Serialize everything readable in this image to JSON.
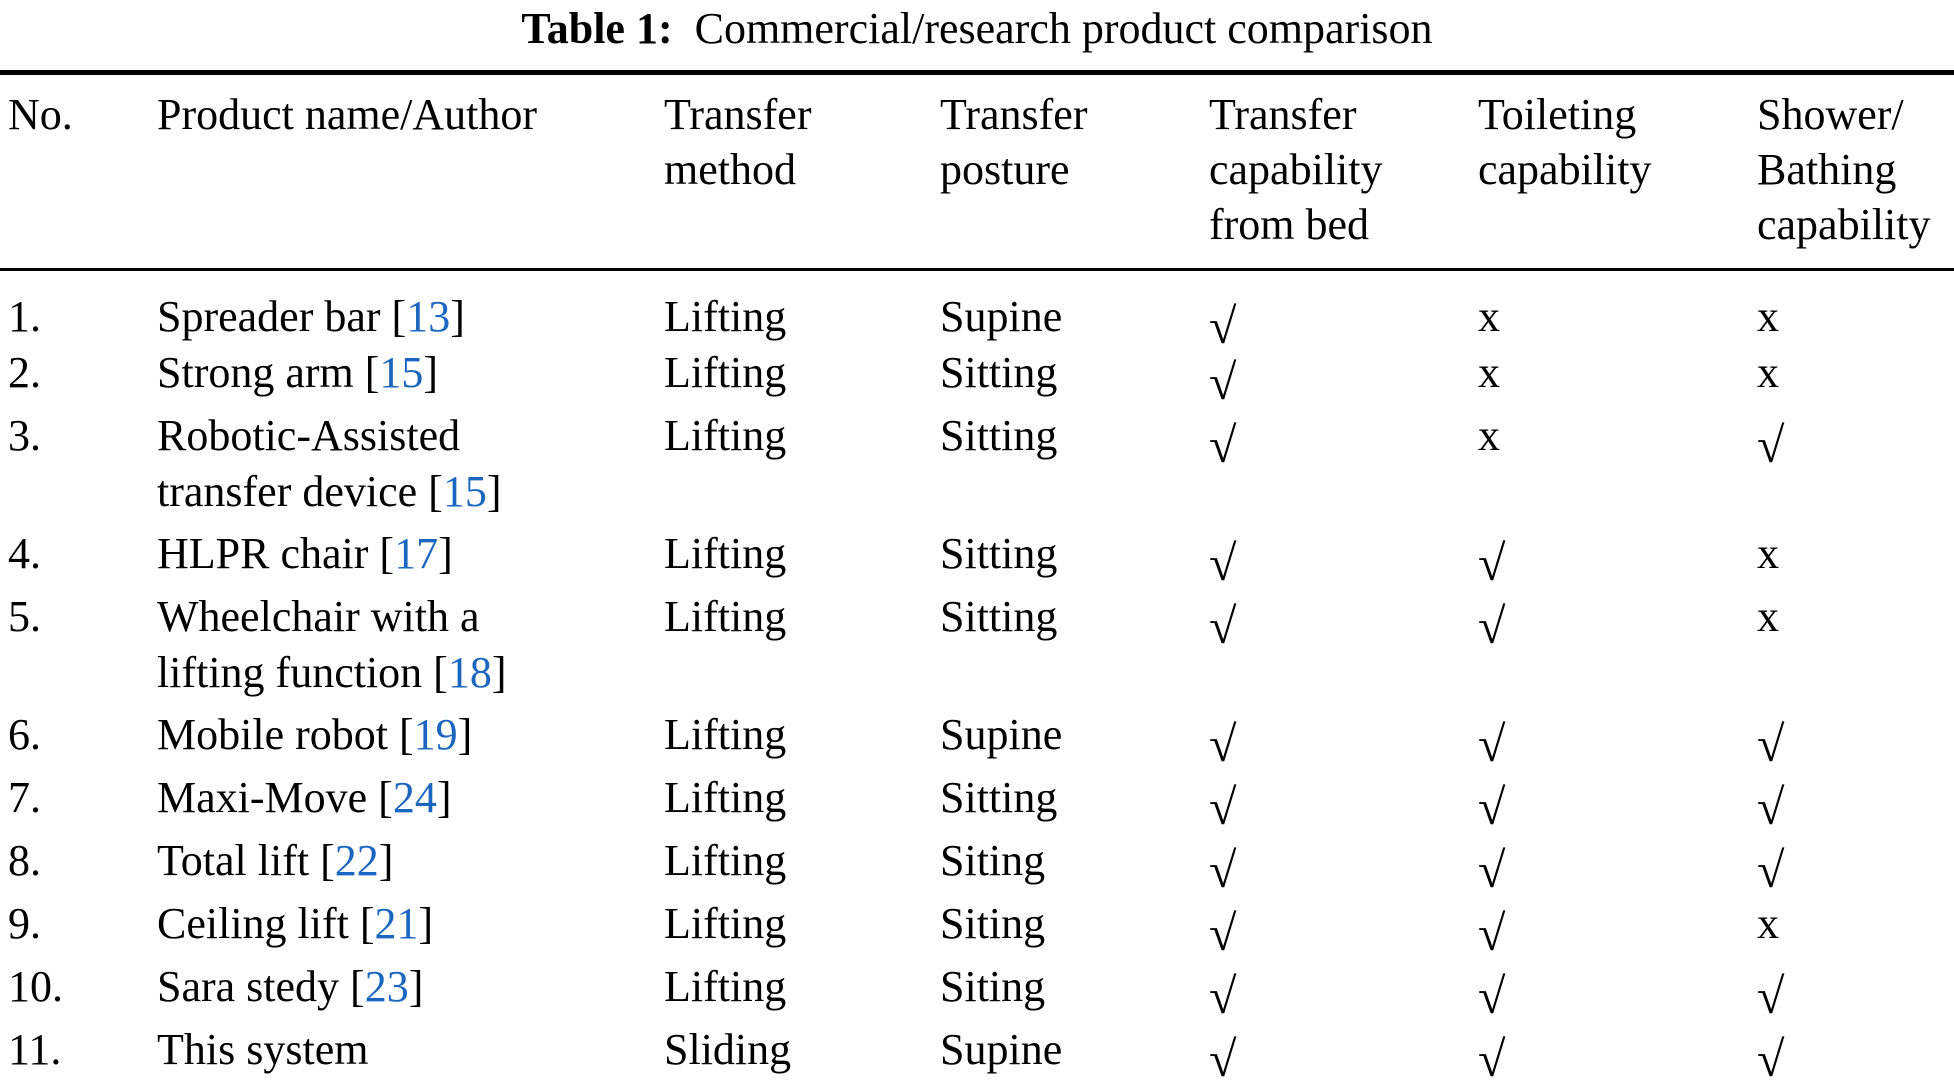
{
  "title": {
    "label": "Table 1:",
    "text": "Commercial/research product comparison"
  },
  "accent_color": "#1b67bf",
  "symbols": {
    "check": "√",
    "cross": "x"
  },
  "table": {
    "columns": [
      {
        "key": "no",
        "lines": [
          "No."
        ]
      },
      {
        "key": "product",
        "lines": [
          "Product name/Author"
        ]
      },
      {
        "key": "method",
        "lines": [
          "Transfer",
          "method"
        ]
      },
      {
        "key": "posture",
        "lines": [
          "Transfer",
          "posture"
        ]
      },
      {
        "key": "bed",
        "lines": [
          "Transfer",
          "capability",
          "from bed"
        ]
      },
      {
        "key": "toilet",
        "lines": [
          "Toileting",
          "capability"
        ]
      },
      {
        "key": "shower",
        "lines": [
          "Shower/",
          "Bathing",
          "capability"
        ]
      }
    ],
    "rows": [
      {
        "no": "1.",
        "name": [
          {
            "text": "Spreader bar",
            "ref": "13"
          }
        ],
        "method": "Lifting",
        "posture": "Supine",
        "bed": "check",
        "toilet": "cross",
        "shower": "cross"
      },
      {
        "no": "2.",
        "name": [
          {
            "text": "Strong arm",
            "ref": "15"
          }
        ],
        "method": "Lifting",
        "posture": "Sitting",
        "bed": "check",
        "toilet": "cross",
        "shower": "cross"
      },
      {
        "no": "3.",
        "name": [
          {
            "text": "Robotic-Assisted"
          },
          {
            "text": "transfer device",
            "ref": "15"
          }
        ],
        "method": "Lifting",
        "posture": "Sitting",
        "bed": "check",
        "toilet": "cross",
        "shower": "check"
      },
      {
        "no": "4.",
        "name": [
          {
            "text": "HLPR chair",
            "ref": "17"
          }
        ],
        "method": "Lifting",
        "posture": "Sitting",
        "bed": "check",
        "toilet": "check",
        "shower": "cross"
      },
      {
        "no": "5.",
        "name": [
          {
            "text": "Wheelchair with a"
          },
          {
            "text": "lifting function",
            "ref": "18"
          }
        ],
        "method": "Lifting",
        "posture": "Sitting",
        "bed": "check",
        "toilet": "check",
        "shower": "cross"
      },
      {
        "no": "6.",
        "name": [
          {
            "text": "Mobile robot",
            "ref": "19"
          }
        ],
        "method": "Lifting",
        "posture": "Supine",
        "bed": "check",
        "toilet": "check",
        "shower": "check"
      },
      {
        "no": "7.",
        "name": [
          {
            "text": "Maxi-Move",
            "ref": "24"
          }
        ],
        "method": "Lifting",
        "posture": "Sitting",
        "bed": "check",
        "toilet": "check",
        "shower": "check"
      },
      {
        "no": "8.",
        "name": [
          {
            "text": "Total lift",
            "ref": "22"
          }
        ],
        "method": "Lifting",
        "posture": "Siting",
        "bed": "check",
        "toilet": "check",
        "shower": "check"
      },
      {
        "no": "9.",
        "name": [
          {
            "text": "Ceiling lift",
            "ref": "21"
          }
        ],
        "method": "Lifting",
        "posture": "Siting",
        "bed": "check",
        "toilet": "check",
        "shower": "cross"
      },
      {
        "no": "10.",
        "name": [
          {
            "text": "Sara stedy",
            "ref": "23"
          }
        ],
        "method": "Lifting",
        "posture": "Siting",
        "bed": "check",
        "toilet": "check",
        "shower": "check"
      },
      {
        "no": "11.",
        "name": [
          {
            "text": "This system"
          }
        ],
        "method": "Sliding",
        "posture": "Supine",
        "bed": "check",
        "toilet": "check",
        "shower": "check"
      }
    ]
  }
}
